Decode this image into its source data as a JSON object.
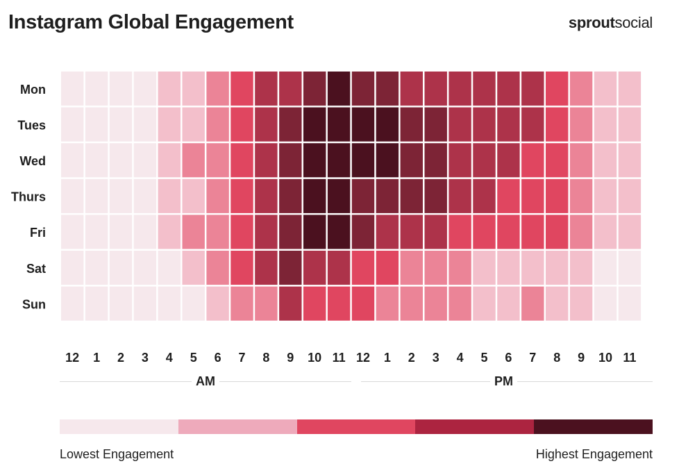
{
  "header": {
    "title": "Instagram Global Engagement",
    "brand_bold": "sprout",
    "brand_light": "social"
  },
  "colors": {
    "level0": "#f6e8ec",
    "level1": "#f3bfcb",
    "level2": "#eb8497",
    "level3": "#e04660",
    "level4": "#ad334a",
    "level5": "#7d2436",
    "level6": "#4b111f"
  },
  "periods": {
    "am": "AM",
    "pm": "PM"
  },
  "legend": {
    "low_label": "Lowest Engagement",
    "high_label": "Highest Engagement",
    "colors": [
      "#f6e8ec",
      "#eeaabb",
      "#e04660",
      "#ac2440",
      "#4b111f"
    ]
  },
  "chart_data": {
    "type": "heatmap",
    "title": "Instagram Global Engagement",
    "rows": [
      "Mon",
      "Tues",
      "Wed",
      "Thurs",
      "Fri",
      "Sat",
      "Sun"
    ],
    "columns": [
      "12",
      "1",
      "2",
      "3",
      "4",
      "5",
      "6",
      "7",
      "8",
      "9",
      "10",
      "11",
      "12",
      "1",
      "2",
      "3",
      "4",
      "5",
      "6",
      "7",
      "8",
      "9",
      "10",
      "11"
    ],
    "scale": "engagement level 0 (lowest) to 6 (highest)",
    "values": [
      [
        0,
        0,
        0,
        0,
        1,
        1,
        2,
        3,
        4,
        4,
        5,
        6,
        5,
        5,
        4,
        4,
        4,
        4,
        4,
        4,
        3,
        2,
        1,
        1
      ],
      [
        0,
        0,
        0,
        0,
        1,
        1,
        2,
        3,
        4,
        5,
        6,
        6,
        6,
        6,
        5,
        5,
        4,
        4,
        4,
        4,
        3,
        2,
        1,
        1
      ],
      [
        0,
        0,
        0,
        0,
        1,
        2,
        2,
        3,
        4,
        5,
        6,
        6,
        6,
        6,
        5,
        5,
        4,
        4,
        4,
        3,
        3,
        2,
        1,
        1
      ],
      [
        0,
        0,
        0,
        0,
        1,
        1,
        2,
        3,
        4,
        5,
        6,
        6,
        5,
        5,
        5,
        5,
        4,
        4,
        3,
        3,
        3,
        2,
        1,
        1
      ],
      [
        0,
        0,
        0,
        0,
        1,
        2,
        2,
        3,
        4,
        5,
        6,
        6,
        5,
        4,
        4,
        4,
        3,
        3,
        3,
        3,
        3,
        2,
        1,
        1
      ],
      [
        0,
        0,
        0,
        0,
        0,
        1,
        2,
        3,
        4,
        5,
        4,
        4,
        3,
        3,
        2,
        2,
        2,
        1,
        1,
        1,
        1,
        1,
        0,
        0
      ],
      [
        0,
        0,
        0,
        0,
        0,
        0,
        1,
        2,
        2,
        4,
        3,
        3,
        3,
        2,
        2,
        2,
        2,
        1,
        1,
        2,
        1,
        1,
        0,
        0
      ]
    ],
    "x_groups": [
      "AM",
      "PM"
    ],
    "legend": [
      "Lowest Engagement",
      "Highest Engagement"
    ]
  }
}
